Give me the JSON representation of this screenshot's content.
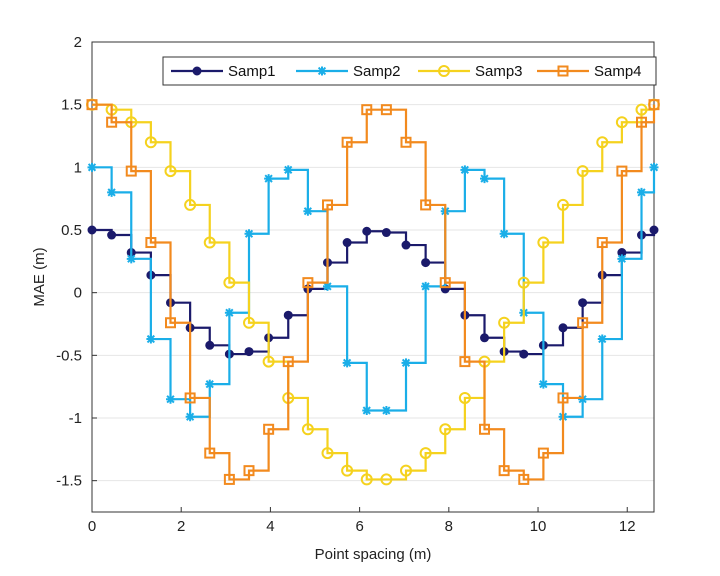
{
  "chart_data": {
    "type": "line",
    "step": "post",
    "xlabel": "Point spacing (m)",
    "ylabel": "MAE (m)",
    "xlim": [
      0,
      12.6
    ],
    "ylim": [
      -1.75,
      2
    ],
    "xticks": [
      0,
      2,
      4,
      6,
      8,
      10,
      12
    ],
    "yticks": [
      -1.5,
      -1,
      -0.5,
      0,
      0.5,
      1,
      1.5,
      2
    ],
    "xtick_labels": [
      "0",
      "2",
      "4",
      "6",
      "8",
      "10",
      "12"
    ],
    "ytick_labels": [
      "-1.5",
      "-1",
      "-0.5",
      "0",
      "0.5",
      "1",
      "1.5",
      "2"
    ],
    "grid": "horizontal",
    "legend_position": "top-right",
    "x": [
      0,
      0.44,
      0.88,
      1.32,
      1.76,
      2.2,
      2.64,
      3.08,
      3.52,
      3.96,
      4.4,
      4.84,
      5.28,
      5.72,
      6.16,
      6.6,
      7.04,
      7.48,
      7.92,
      8.36,
      8.8,
      9.24,
      9.68,
      10.12,
      10.56,
      11.0,
      11.44,
      11.88,
      12.32,
      12.6
    ],
    "series": [
      {
        "name": "Samp1",
        "color": "#1b1a6b",
        "marker": "dot",
        "values": [
          0.5,
          0.46,
          0.32,
          0.14,
          -0.08,
          -0.28,
          -0.42,
          -0.49,
          -0.47,
          -0.36,
          -0.18,
          0.03,
          0.24,
          0.4,
          0.49,
          0.48,
          0.38,
          0.24,
          0.03,
          -0.18,
          -0.36,
          -0.47,
          -0.49,
          -0.42,
          -0.28,
          -0.08,
          0.14,
          0.32,
          0.46,
          0.5
        ]
      },
      {
        "name": "Samp2",
        "color": "#1aaee8",
        "marker": "asterisk",
        "values": [
          1.0,
          0.8,
          0.27,
          -0.37,
          -0.85,
          -0.99,
          -0.73,
          -0.16,
          0.47,
          0.91,
          0.98,
          0.65,
          0.05,
          -0.56,
          -0.94,
          -0.94,
          -0.56,
          0.05,
          0.65,
          0.98,
          0.91,
          0.47,
          -0.16,
          -0.73,
          -0.99,
          -0.85,
          -0.37,
          0.27,
          0.8,
          1.0
        ]
      },
      {
        "name": "Samp3",
        "color": "#f5d21e",
        "marker": "circle",
        "values": [
          1.5,
          1.46,
          1.36,
          1.2,
          0.97,
          0.7,
          0.4,
          0.08,
          -0.24,
          -0.55,
          -0.84,
          -1.09,
          -1.28,
          -1.42,
          -1.49,
          -1.49,
          -1.42,
          -1.28,
          -1.09,
          -0.84,
          -0.55,
          -0.24,
          0.08,
          0.4,
          0.7,
          0.97,
          1.2,
          1.36,
          1.46,
          1.5
        ]
      },
      {
        "name": "Samp4",
        "color": "#f28a1e",
        "marker": "square",
        "values": [
          1.5,
          1.36,
          0.97,
          0.4,
          -0.24,
          -0.84,
          -1.28,
          -1.49,
          -1.42,
          -1.09,
          -0.55,
          0.08,
          0.7,
          1.2,
          1.46,
          1.46,
          1.2,
          0.7,
          0.08,
          -0.55,
          -1.09,
          -1.42,
          -1.49,
          -1.28,
          -0.84,
          -0.24,
          0.4,
          0.97,
          1.36,
          1.5
        ]
      }
    ]
  }
}
